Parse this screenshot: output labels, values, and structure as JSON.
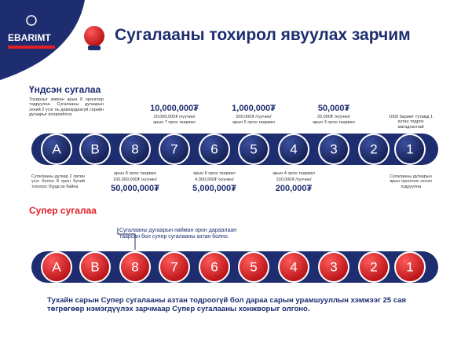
{
  "header": {
    "logo": "EBARIMT",
    "title": "Сугалааны тохирол явуулах зарчим"
  },
  "main_lottery": {
    "title": "Үндсэн сугалаа",
    "balls": [
      "A",
      "B",
      "8",
      "7",
      "6",
      "5",
      "4",
      "3",
      "2",
      "1"
    ],
    "top_note": "Тохирлыг зөвхөн арын 8 оронгоор тодруулна. Сугалааны дугаарын эхний 2 үсэг нь давхардаагүй серийн дугаарыг илэрхийлнэ",
    "letters_note": "Сугалааны дугаар 2 латин үсэг болон 8 орон бүхий тооноос бүрдсэн байна",
    "chance_note": "1000 баримт тутамд 1 азтан тодрох магадлалтай",
    "order_note": "Сугалааны дугаарын арын оронгоос эхлэн тодруулна",
    "prizes_above": [
      {
        "prize": "10,000,000₮",
        "detail": "20,000,000₮ /хүүчин/",
        "condition": "арын 7 орон таарвал"
      },
      {
        "prize": "1,000,000₮",
        "detail": "500,000₮ /хүүчин/",
        "condition": "арын 5 орон таарвал"
      },
      {
        "prize": "50,000₮",
        "detail": "20,000₮ /хүүчин/",
        "condition": "арын 3 орон таарвал"
      }
    ],
    "prizes_below": [
      {
        "condition": "арын 8 орон таарвал",
        "detail": "100,000,000₮ /хүүчин/",
        "prize": "50,000,000₮"
      },
      {
        "condition": "арын 6 орон таарвал",
        "detail": "4,000,000₮ /хүүчин/",
        "prize": "5,000,000₮"
      },
      {
        "condition": "арын 4 орон таарвал",
        "detail": "100,000₮ /хүүчин/",
        "prize": "200,000₮"
      }
    ]
  },
  "super_lottery": {
    "title": "Супер сугалаа",
    "balls": [
      "A",
      "B",
      "8",
      "7",
      "6",
      "5",
      "4",
      "3",
      "2",
      "1"
    ],
    "note": "Сугалааны дугаарын найман орон дараалаан таарсан бол супер сугалааны азтан болно.",
    "footer": "Тухайн сарын Супер сугалааны азтан тодроогүй бол дараа сарын урамшууллын хэмжээг 25 сая төгрөгөөр нэмэгдүүлэх зарчмаар Супер сугалааны хонжворыг олгоно."
  }
}
